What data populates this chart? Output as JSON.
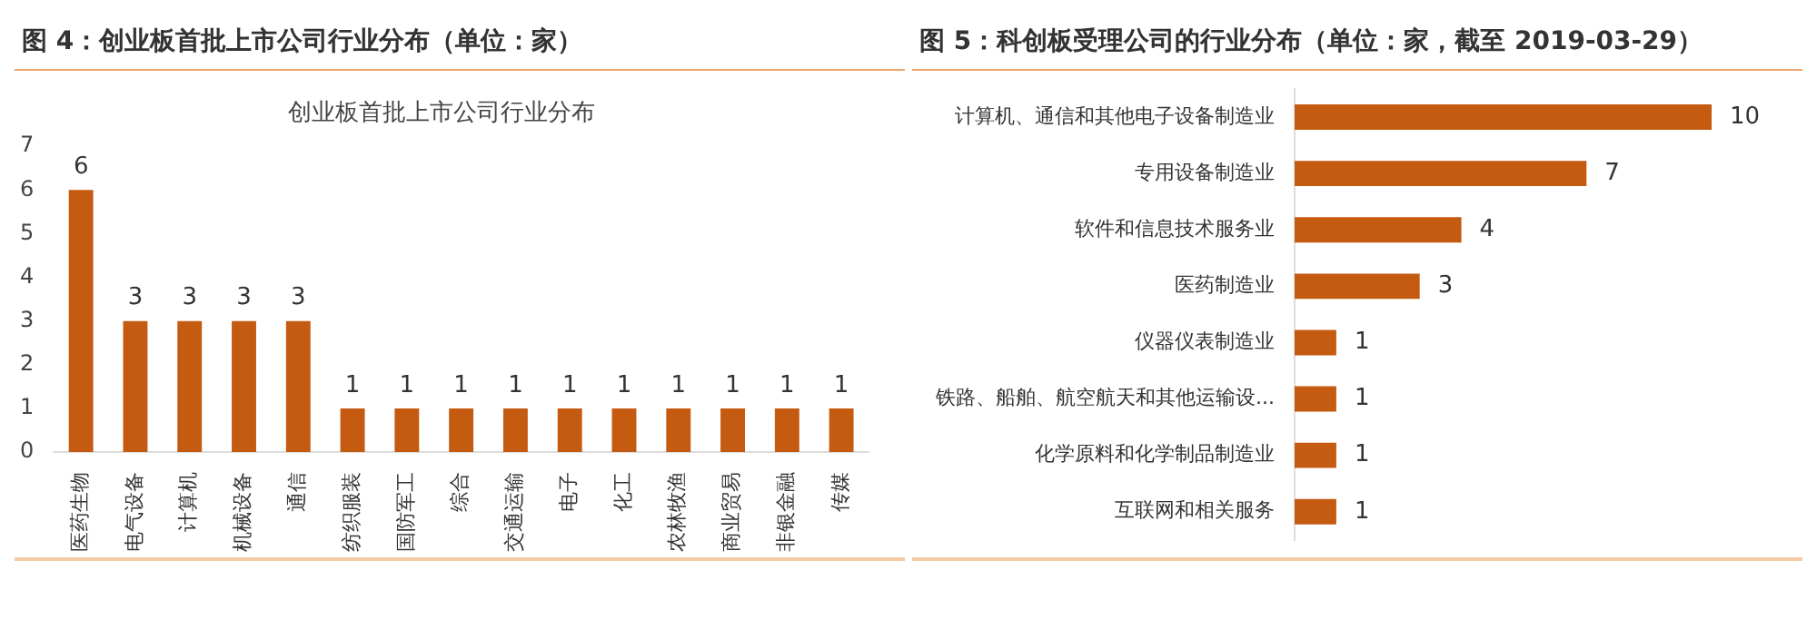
{
  "chart_data": [
    {
      "type": "bar",
      "title": "图 4：创业板首批上市公司行业分布（单位：家）",
      "subtitle": "创业板首批上市公司行业分布",
      "categories": [
        "医药生物",
        "电气设备",
        "计算机",
        "机械设备",
        "通信",
        "纺织服装",
        "国防军工",
        "综合",
        "交通运输",
        "电子",
        "化工",
        "农林牧渔",
        "商业贸易",
        "非银金融",
        "传媒"
      ],
      "values": [
        6,
        3,
        3,
        3,
        3,
        1,
        1,
        1,
        1,
        1,
        1,
        1,
        1,
        1,
        1
      ],
      "color": "#c55a11",
      "ylim": [
        0,
        7
      ],
      "yticks": [
        0,
        1,
        2,
        3,
        4,
        5,
        6,
        7
      ],
      "data_labels": true
    },
    {
      "type": "bar",
      "orientation": "horizontal",
      "title": "图 5：科创板受理公司的行业分布（单位：家，截至 2019-03-29）",
      "categories": [
        "计算机、通信和其他电子设备制造业",
        "专用设备制造业",
        "软件和信息技术服务业",
        "医药制造业",
        "仪器仪表制造业",
        "铁路、船舶、航空航天和其他运输设...",
        "化学原料和化学制品制造业",
        "互联网和相关服务"
      ],
      "values": [
        10,
        7,
        4,
        3,
        1,
        1,
        1,
        1
      ],
      "color": "#c55a11",
      "data_labels": true,
      "tick_labels": "y"
    }
  ]
}
